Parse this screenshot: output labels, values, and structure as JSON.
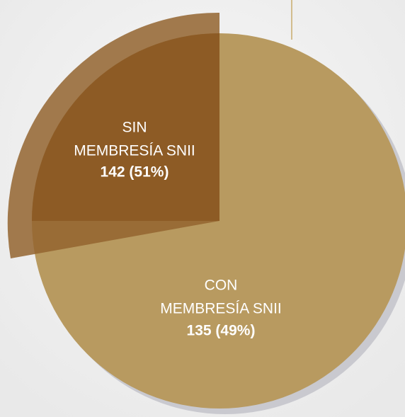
{
  "segments": [
    {
      "lines": [
        "SIN",
        "MEMBRESÍA SNII"
      ],
      "figure": "142 (51%)"
    },
    {
      "lines": [
        "CON",
        "MEMBRESÍA SNII"
      ],
      "figure": "135 (49%)"
    }
  ]
}
